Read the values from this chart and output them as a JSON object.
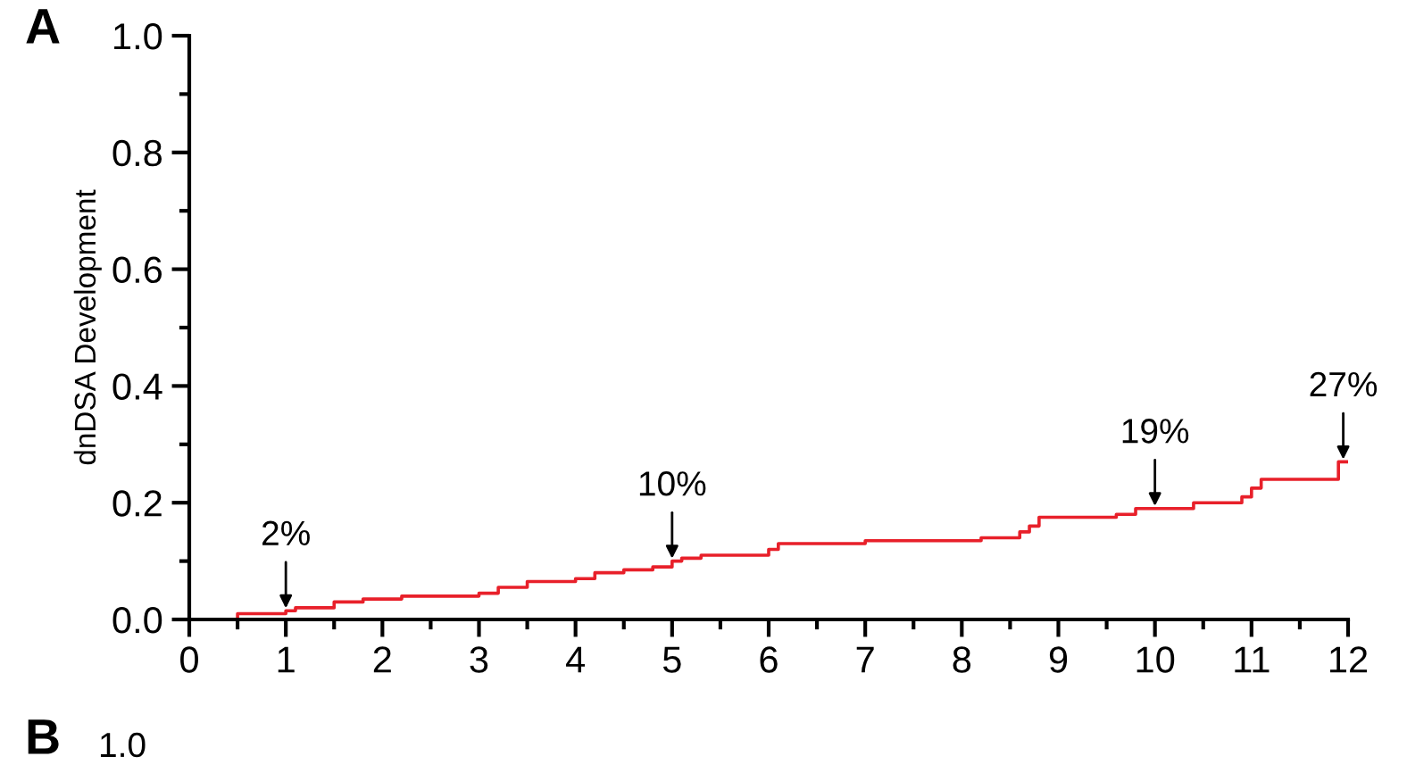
{
  "chart_data": {
    "type": "step",
    "ylabel": "dnDSA Development",
    "x": [
      0,
      0.5,
      1.0,
      1.1,
      1.5,
      1.8,
      2.2,
      3.0,
      3.2,
      3.5,
      4.0,
      4.2,
      4.5,
      4.8,
      5.0,
      5.1,
      5.3,
      6.0,
      6.1,
      7.0,
      8.2,
      8.6,
      8.7,
      8.8,
      9.6,
      9.8,
      10.4,
      10.9,
      11.0,
      11.1,
      11.9,
      12.0
    ],
    "series": [
      {
        "color": "#e8202a",
        "values": [
          0,
          0.01,
          0.015,
          0.02,
          0.03,
          0.035,
          0.04,
          0.045,
          0.055,
          0.065,
          0.07,
          0.08,
          0.085,
          0.09,
          0.1,
          0.105,
          0.11,
          0.12,
          0.13,
          0.135,
          0.14,
          0.15,
          0.16,
          0.175,
          0.18,
          0.19,
          0.2,
          0.21,
          0.225,
          0.24,
          0.27,
          0.27
        ]
      }
    ],
    "xlim": [
      0,
      12
    ],
    "xticks": [
      0,
      1,
      2,
      3,
      4,
      5,
      6,
      7,
      8,
      9,
      10,
      11,
      12
    ],
    "ylim": [
      0,
      1.0
    ],
    "yticks": [
      {
        "value": 0,
        "label": "0.0"
      },
      0.2,
      0.4,
      0.6,
      0.8,
      {
        "value": 1.0,
        "label": "1.0"
      }
    ],
    "grid": false,
    "legend": false,
    "annotations": [
      "A",
      {
        "text": "2%",
        "x": 1,
        "y": 0.015
      },
      {
        "text": "10%",
        "x": 5,
        "y": 0.1
      },
      {
        "text": "19%",
        "x": 10,
        "y": 0.19
      },
      {
        "text": "27%",
        "x": 11.95,
        "y": 0.27
      },
      "B",
      "1.0"
    ]
  }
}
